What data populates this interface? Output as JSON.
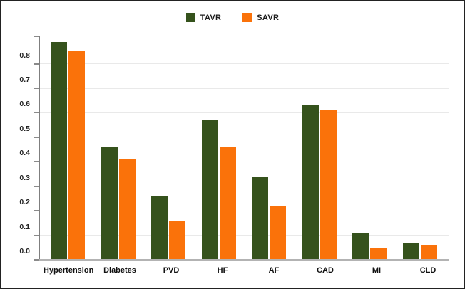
{
  "chart_data": {
    "type": "bar",
    "title": "",
    "xlabel": "",
    "ylabel": "",
    "categories": [
      "Hypertension",
      "Diabetes",
      "PVD",
      "HF",
      "AF",
      "CAD",
      "MI",
      "CLD"
    ],
    "series": [
      {
        "name": "TAVR",
        "color": "#35521c",
        "values": [
          0.89,
          0.46,
          0.26,
          0.57,
          0.34,
          0.63,
          0.11,
          0.07
        ]
      },
      {
        "name": "SAVR",
        "color": "#fa720a",
        "values": [
          0.85,
          0.41,
          0.16,
          0.46,
          0.22,
          0.61,
          0.05,
          0.06
        ]
      }
    ],
    "ylim": [
      0,
      0.915
    ],
    "yticks": [
      0.0,
      0.1,
      0.2,
      0.3,
      0.4,
      0.5,
      0.6,
      0.7,
      0.8
    ],
    "ytick_labels": [
      "0.0",
      "0.1",
      "0.2",
      "0.3",
      "0.4",
      "0.5",
      "0.6",
      "0.7",
      "0.8"
    ],
    "grid": "horizontal",
    "legend_position": "top-center",
    "colors": {
      "gridline": "#e9e9e9",
      "axis": "#7f7f7f",
      "baseline": "#b3b3b3",
      "label_text": "#111111"
    }
  }
}
